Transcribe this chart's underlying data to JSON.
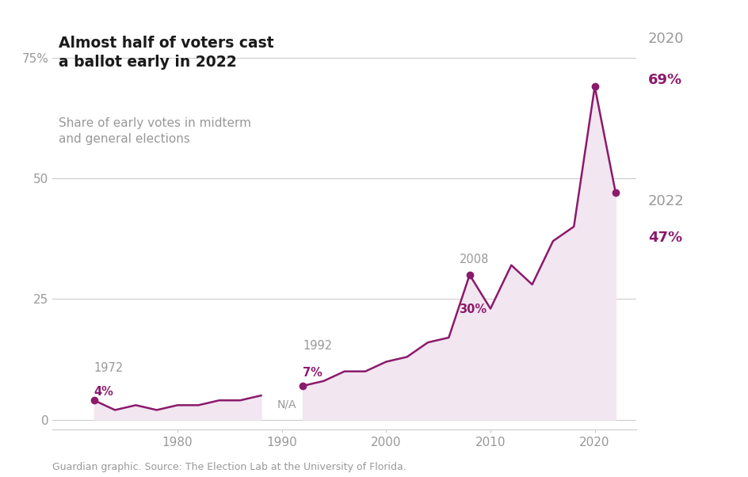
{
  "title_bold": "Almost half of voters cast\na ballot early in 2022",
  "subtitle": "Share of early votes in midterm\nand general elections",
  "source": "Guardian graphic. Source: The Election Lab at the University of Florida.",
  "line_color": "#8B1A6B",
  "fill_color": "#F2E6F0",
  "background_color": "#FFFFFF",
  "grid_color": "#CCCCCC",
  "label_color": "#999999",
  "years_segment1": [
    1972,
    1974,
    1976,
    1978,
    1980,
    1982,
    1984,
    1986,
    1988
  ],
  "values_segment1": [
    4,
    2,
    3,
    2,
    3,
    3,
    4,
    4,
    5
  ],
  "years_segment2": [
    1992,
    1994,
    1996,
    1998,
    2000,
    2002,
    2004,
    2006,
    2008,
    2010,
    2012,
    2014,
    2016,
    2018,
    2020,
    2022
  ],
  "values_segment2": [
    7,
    8,
    10,
    10,
    12,
    13,
    16,
    17,
    30,
    23,
    32,
    28,
    37,
    40,
    69,
    47
  ],
  "na_text": "N/A",
  "yticks": [
    0,
    25,
    50,
    75
  ],
  "xticks": [
    1980,
    1990,
    2000,
    2010,
    2020
  ],
  "xlim": [
    1968,
    2024
  ],
  "ylim": [
    -2,
    82
  ]
}
